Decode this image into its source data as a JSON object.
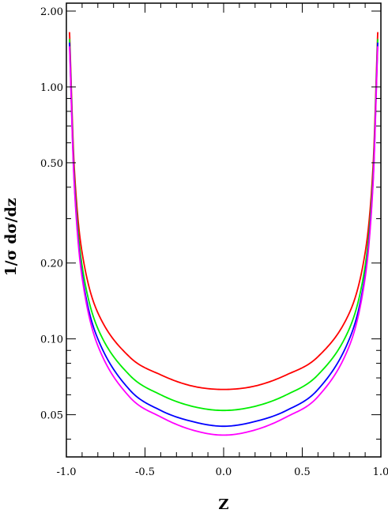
{
  "chart_data": {
    "type": "line",
    "title": "",
    "xlabel": "Z",
    "ylabel": "1/σ dσ/dz",
    "xlim": [
      -1.0,
      1.0
    ],
    "ylim": [
      0.034,
      2.15
    ],
    "yscale": "log",
    "grid": false,
    "xticks": [
      -1.0,
      -0.5,
      0.0,
      0.5,
      1.0
    ],
    "xtick_labels": [
      "-1.0",
      "-0.5",
      "0.0",
      "0.5",
      "1.0"
    ],
    "yticks": [
      0.05,
      0.1,
      0.2,
      0.5,
      1.0,
      2.0
    ],
    "ytick_labels": [
      "0.05",
      "0.10",
      "0.20",
      "0.50",
      "1.00",
      "2.00"
    ],
    "series": [
      {
        "color": "#ff0000",
        "x": [
          -0.98,
          -0.95,
          -0.9,
          -0.8,
          -0.6,
          -0.4,
          -0.2,
          0.0,
          0.2,
          0.4,
          0.6,
          0.8,
          0.9,
          0.95,
          0.98
        ],
        "y": [
          1.65,
          0.48,
          0.22,
          0.127,
          0.085,
          0.072,
          0.065,
          0.063,
          0.065,
          0.072,
          0.085,
          0.127,
          0.22,
          0.48,
          1.65
        ]
      },
      {
        "color": "#00ee00",
        "x": [
          -0.98,
          -0.95,
          -0.9,
          -0.8,
          -0.6,
          -0.4,
          -0.2,
          0.0,
          0.2,
          0.4,
          0.6,
          0.8,
          0.9,
          0.95,
          0.98
        ],
        "y": [
          1.55,
          0.44,
          0.195,
          0.11,
          0.072,
          0.06,
          0.054,
          0.052,
          0.054,
          0.06,
          0.072,
          0.11,
          0.195,
          0.44,
          1.55
        ]
      },
      {
        "color": "#0000ff",
        "x": [
          -0.98,
          -0.95,
          -0.9,
          -0.8,
          -0.6,
          -0.4,
          -0.2,
          0.0,
          0.2,
          0.4,
          0.6,
          0.8,
          0.9,
          0.95,
          0.98
        ],
        "y": [
          1.5,
          0.42,
          0.18,
          0.1,
          0.063,
          0.052,
          0.047,
          0.045,
          0.047,
          0.052,
          0.063,
          0.1,
          0.18,
          0.42,
          1.5
        ]
      },
      {
        "color": "#ff00ff",
        "x": [
          -0.98,
          -0.95,
          -0.9,
          -0.8,
          -0.6,
          -0.4,
          -0.2,
          0.0,
          0.2,
          0.4,
          0.6,
          0.8,
          0.9,
          0.95,
          0.98
        ],
        "y": [
          1.45,
          0.41,
          0.175,
          0.094,
          0.059,
          0.049,
          0.0435,
          0.0415,
          0.0435,
          0.049,
          0.059,
          0.094,
          0.175,
          0.41,
          1.45
        ]
      }
    ]
  }
}
